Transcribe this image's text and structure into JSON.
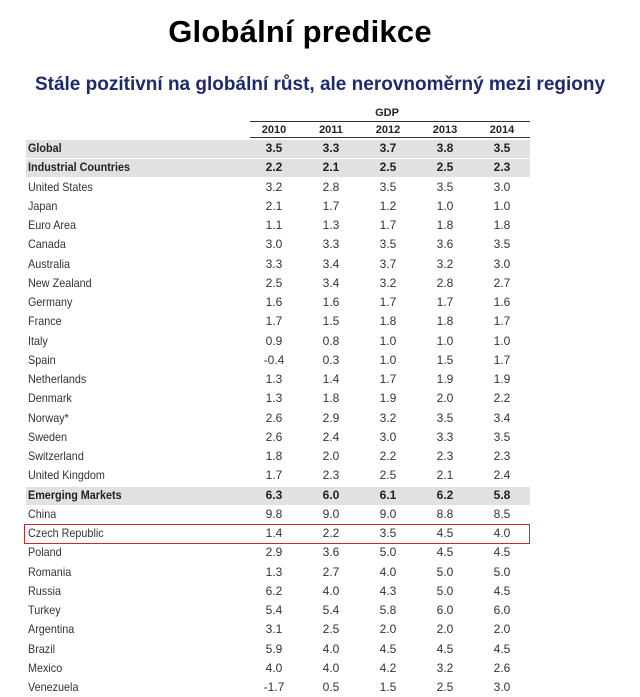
{
  "slide": {
    "title": "Globální predikce",
    "subtitle": "Stále pozitivní na globální růst, ale nerovnoměrný mezi regiony"
  },
  "table": {
    "group_label": "GDP",
    "years": [
      "2010",
      "2011",
      "2012",
      "2013",
      "2014"
    ],
    "rows": [
      {
        "country": "Global",
        "values": [
          "3.5",
          "3.3",
          "3.7",
          "3.8",
          "3.5"
        ],
        "bold": true,
        "shaded": true
      },
      {
        "country": "Industrial Countries",
        "values": [
          "2.2",
          "2.1",
          "2.5",
          "2.5",
          "2.3"
        ],
        "bold": true,
        "shaded": true
      },
      {
        "country": "United States",
        "values": [
          "3.2",
          "2.8",
          "3.5",
          "3.5",
          "3.0"
        ]
      },
      {
        "country": "Japan",
        "values": [
          "2.1",
          "1.7",
          "1.2",
          "1.0",
          "1.0"
        ]
      },
      {
        "country": "Euro Area",
        "values": [
          "1.1",
          "1.3",
          "1.7",
          "1.8",
          "1.8"
        ]
      },
      {
        "country": "Canada",
        "values": [
          "3.0",
          "3.3",
          "3.5",
          "3.6",
          "3.5"
        ]
      },
      {
        "country": "Australia",
        "values": [
          "3.3",
          "3.4",
          "3.7",
          "3.2",
          "3.0"
        ]
      },
      {
        "country": "New Zealand",
        "values": [
          "2.5",
          "3.4",
          "3.2",
          "2.8",
          "2.7"
        ]
      },
      {
        "country": "Germany",
        "values": [
          "1.6",
          "1.6",
          "1.7",
          "1.7",
          "1.6"
        ]
      },
      {
        "country": "France",
        "values": [
          "1.7",
          "1.5",
          "1.8",
          "1.8",
          "1.7"
        ]
      },
      {
        "country": "Italy",
        "values": [
          "0.9",
          "0.8",
          "1.0",
          "1.0",
          "1.0"
        ]
      },
      {
        "country": "Spain",
        "values": [
          "-0.4",
          "0.3",
          "1.0",
          "1.5",
          "1.7"
        ]
      },
      {
        "country": "Netherlands",
        "values": [
          "1.3",
          "1.4",
          "1.7",
          "1.9",
          "1.9"
        ]
      },
      {
        "country": "Denmark",
        "values": [
          "1.3",
          "1.8",
          "1.9",
          "2.0",
          "2.2"
        ]
      },
      {
        "country": "Norway*",
        "values": [
          "2.6",
          "2.9",
          "3.2",
          "3.5",
          "3.4"
        ]
      },
      {
        "country": "Sweden",
        "values": [
          "2.6",
          "2.4",
          "3.0",
          "3.3",
          "3.5"
        ]
      },
      {
        "country": "Switzerland",
        "values": [
          "1.8",
          "2.0",
          "2.2",
          "2.3",
          "2.3"
        ]
      },
      {
        "country": "United Kingdom",
        "values": [
          "1.7",
          "2.3",
          "2.5",
          "2.1",
          "2.4"
        ]
      },
      {
        "country": "Emerging Markets",
        "values": [
          "6.3",
          "6.0",
          "6.1",
          "6.2",
          "5.8"
        ],
        "bold": true,
        "shaded": true
      },
      {
        "country": "China",
        "values": [
          "9.8",
          "9.0",
          "9.0",
          "8.8",
          "8.5"
        ]
      },
      {
        "country": "Czech Republic",
        "values": [
          "1.4",
          "2.2",
          "3.5",
          "4.5",
          "4.0"
        ],
        "highlight": true
      },
      {
        "country": "Poland",
        "values": [
          "2.9",
          "3.6",
          "5.0",
          "4.5",
          "4.5"
        ]
      },
      {
        "country": "Romania",
        "values": [
          "1.3",
          "2.7",
          "4.0",
          "5.0",
          "5.0"
        ]
      },
      {
        "country": "Russia",
        "values": [
          "6.2",
          "4.0",
          "4.3",
          "5.0",
          "4.5"
        ]
      },
      {
        "country": "Turkey",
        "values": [
          "5.4",
          "5.4",
          "5.8",
          "6.0",
          "6.0"
        ]
      },
      {
        "country": "Argentina",
        "values": [
          "3.1",
          "2.5",
          "2.0",
          "2.0",
          "2.0"
        ]
      },
      {
        "country": "Brazil",
        "values": [
          "5.9",
          "4.0",
          "4.5",
          "4.5",
          "4.5"
        ]
      },
      {
        "country": "Mexico",
        "values": [
          "4.0",
          "4.0",
          "4.2",
          "3.2",
          "2.6"
        ]
      },
      {
        "country": "Venezuela",
        "values": [
          "-1.7",
          "0.5",
          "1.5",
          "2.5",
          "3.0"
        ]
      }
    ]
  }
}
